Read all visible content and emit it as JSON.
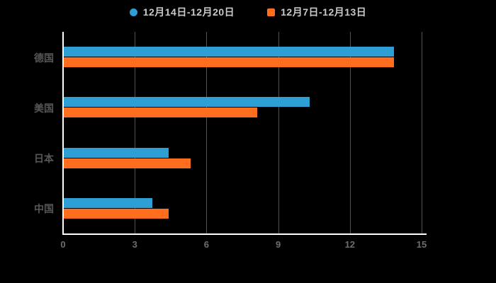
{
  "chart_data": {
    "type": "bar",
    "orientation": "horizontal",
    "title": "",
    "categories": [
      "德国",
      "美国",
      "日本",
      "中国"
    ],
    "series": [
      {
        "name": "12月14日-12月20日",
        "marker": "circle",
        "color": "#2D9FD4",
        "values": [
          13.8,
          10.3,
          4.4,
          3.7
        ]
      },
      {
        "name": "12月7日-12月13日",
        "marker": "square",
        "color": "#FF6E1E",
        "values": [
          13.8,
          8.1,
          5.3,
          4.4
        ]
      }
    ],
    "x_axis": {
      "min": 0,
      "max": 15,
      "ticks": [
        0,
        3,
        6,
        9,
        12,
        15
      ]
    },
    "grid": true,
    "legend_position": "top"
  },
  "colors": {
    "background": "#000000",
    "axis_line": "#ffffff",
    "gridline": "#4f4f4f",
    "tick_label": "#6e6e6e",
    "category_label": "#575757",
    "legend_text": "#c9c9c9"
  }
}
